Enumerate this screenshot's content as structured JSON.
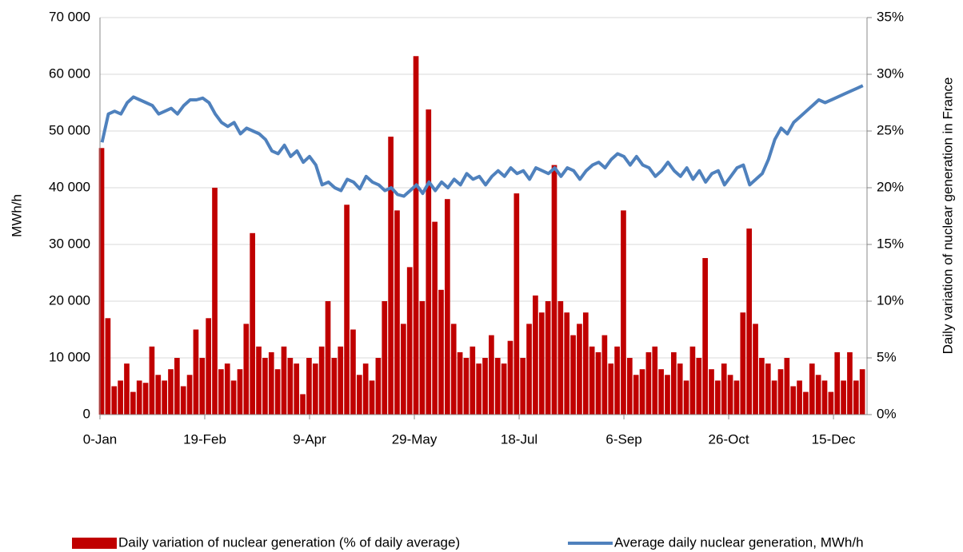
{
  "chart_data": {
    "type": "bar-line",
    "ylabel": "MWh/h",
    "y2label": "Daily variation of nuclear generation in France",
    "xlim": [
      0,
      366
    ],
    "xticks": [
      {
        "value": 0,
        "label": "0-Jan"
      },
      {
        "value": 50,
        "label": "19-Feb"
      },
      {
        "value": 100,
        "label": "9-Apr"
      },
      {
        "value": 150,
        "label": "29-May"
      },
      {
        "value": 200,
        "label": "18-Jul"
      },
      {
        "value": 250,
        "label": "6-Sep"
      },
      {
        "value": 300,
        "label": "26-Oct"
      },
      {
        "value": 350,
        "label": "15-Dec"
      }
    ],
    "ylim": [
      0,
      70000
    ],
    "yticks": [
      0,
      {
        "value": 10000,
        "label": "10 000"
      },
      {
        "value": 20000,
        "label": "20 000"
      },
      {
        "value": 30000,
        "label": "30 000"
      },
      {
        "value": 40000,
        "label": "40 000"
      },
      {
        "value": 50000,
        "label": "50 000"
      },
      {
        "value": 60000,
        "label": "60 000"
      },
      {
        "value": 70000,
        "label": "70 000"
      }
    ],
    "y2lim": [
      0,
      35
    ],
    "y2ticks": [
      {
        "value": 0,
        "label": "0%"
      },
      {
        "value": 5,
        "label": "5%"
      },
      {
        "value": 10,
        "label": "10%"
      },
      {
        "value": 15,
        "label": "15%"
      },
      {
        "value": 20,
        "label": "20%"
      },
      {
        "value": 25,
        "label": "25%"
      },
      {
        "value": 30,
        "label": "30%"
      },
      {
        "value": 35,
        "label": "35%"
      }
    ],
    "grid": true,
    "legend": "bottom",
    "x": [
      1,
      4,
      7,
      10,
      13,
      16,
      19,
      22,
      25,
      28,
      31,
      34,
      37,
      40,
      43,
      46,
      49,
      52,
      55,
      58,
      61,
      64,
      67,
      70,
      73,
      76,
      79,
      82,
      85,
      88,
      91,
      94,
      97,
      100,
      103,
      106,
      109,
      112,
      115,
      118,
      121,
      124,
      127,
      130,
      133,
      136,
      139,
      142,
      145,
      148,
      151,
      154,
      157,
      160,
      163,
      166,
      169,
      172,
      175,
      178,
      181,
      184,
      187,
      190,
      193,
      196,
      199,
      202,
      205,
      208,
      211,
      214,
      217,
      220,
      223,
      226,
      229,
      232,
      235,
      238,
      241,
      244,
      247,
      250,
      253,
      256,
      259,
      262,
      265,
      268,
      271,
      274,
      277,
      280,
      283,
      286,
      289,
      292,
      295,
      298,
      301,
      304,
      307,
      310,
      313,
      316,
      319,
      322,
      325,
      328,
      331,
      334,
      337,
      340,
      343,
      346,
      349,
      352,
      355,
      358,
      361,
      364
    ],
    "series": [
      {
        "name": "Daily variation of nuclear generation (% of daily average)",
        "color": "#c00000",
        "kind": "bar",
        "axis": "y2",
        "values": [
          23.5,
          8.5,
          2.5,
          3,
          4.5,
          2,
          3,
          2.8,
          6,
          3.5,
          3,
          4,
          5,
          2.5,
          3.5,
          7.5,
          5,
          8.5,
          20,
          4,
          4.5,
          3,
          4,
          8,
          16,
          6,
          5,
          5.5,
          4,
          6,
          5,
          4.5,
          1.8,
          5,
          4.5,
          6,
          10,
          5,
          6,
          18.5,
          7.5,
          3.5,
          4.5,
          3,
          5,
          10,
          24.5,
          18,
          8,
          13,
          31.6,
          10,
          26.9,
          17,
          11,
          19,
          8,
          5.5,
          5,
          6,
          4.5,
          5,
          7,
          5,
          4.5,
          6.5,
          19.5,
          5,
          8,
          10.5,
          9,
          10,
          22,
          10,
          9,
          7,
          8,
          9,
          6,
          5.5,
          7,
          4.5,
          6,
          18,
          5,
          3.5,
          4,
          5.5,
          6,
          4,
          3.5,
          5.5,
          4.5,
          3,
          6,
          5,
          13.8,
          4,
          3,
          4.5,
          3.5,
          3,
          9,
          16.4,
          8,
          5,
          4.5,
          3,
          4,
          5,
          2.5,
          3,
          2,
          4.5,
          3.5,
          3,
          2,
          5.5,
          3,
          5.5,
          3,
          4
        ]
      },
      {
        "name": "Average daily nuclear generation, MWh/h",
        "color": "#4f81bd",
        "kind": "line",
        "values": [
          48000,
          53000,
          53500,
          53000,
          55000,
          56000,
          55500,
          55000,
          54500,
          53000,
          53500,
          54000,
          53000,
          54500,
          55500,
          55500,
          55800,
          55000,
          53000,
          51500,
          50800,
          51500,
          49500,
          50500,
          50000,
          49500,
          48500,
          46500,
          46000,
          47500,
          45500,
          46500,
          44500,
          45500,
          44000,
          40500,
          41000,
          40000,
          39500,
          41500,
          41000,
          39800,
          42000,
          41000,
          40500,
          39500,
          40000,
          38800,
          38500,
          39500,
          40500,
          39000,
          41000,
          39500,
          41000,
          40000,
          41500,
          40500,
          42500,
          41500,
          42000,
          40500,
          42000,
          43000,
          42000,
          43500,
          42500,
          43000,
          41500,
          43500,
          43000,
          42500,
          43500,
          42000,
          43500,
          43000,
          41500,
          43000,
          44000,
          44500,
          43500,
          45000,
          46000,
          45500,
          44000,
          45500,
          44000,
          43500,
          42000,
          43000,
          44500,
          43000,
          42000,
          43500,
          41500,
          43000,
          41000,
          42500,
          43000,
          40500,
          42000,
          43500,
          44000,
          40500,
          41500,
          42500,
          45000,
          48500,
          50500,
          49500,
          51500,
          52500,
          53500,
          54500,
          55500,
          55000,
          55500,
          56000,
          56500,
          57000,
          57500,
          58000
        ]
      }
    ]
  }
}
